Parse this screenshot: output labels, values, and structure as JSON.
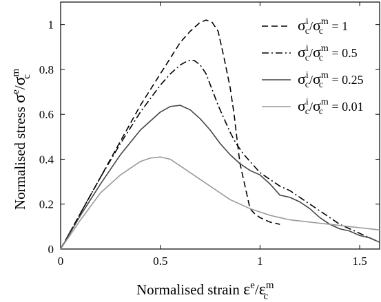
{
  "chart_data": {
    "type": "line",
    "title": "",
    "xlabel": {
      "text": "Normalised strain",
      "symbol": {
        "main": "ε",
        "sup1": "e",
        "sep": "/",
        "main2": "ε",
        "sub2": "c",
        "sup2": "m"
      }
    },
    "ylabel": {
      "text": "Normalised stress",
      "symbol": {
        "main": "σ",
        "sup1": "e",
        "sep": "/",
        "main2": "σ",
        "sub2": "c",
        "sup2": "m"
      }
    },
    "xlim": [
      0,
      1.6
    ],
    "ylim": [
      0,
      1.1
    ],
    "xticks": [
      0,
      0.5,
      1,
      1.5
    ],
    "xtick_labels": [
      "0",
      "0.5",
      "1",
      "1.5"
    ],
    "yticks": [
      0,
      0.2,
      0.4,
      0.6,
      0.8,
      1
    ],
    "ytick_labels": [
      "0",
      "0.2",
      "0.4",
      "0.6",
      "0.8",
      "1"
    ],
    "grid": false,
    "legend_position": "top-right",
    "series": [
      {
        "name": "σci/σcm = 1",
        "legend": {
          "sym1": "σ",
          "sub1": "c",
          "sup1": "i",
          "sym2": "σ",
          "sub2": "c",
          "sup2": "m",
          "value": "= 1"
        },
        "style": "dashed",
        "color": "#000000",
        "x": [
          0,
          0.1,
          0.2,
          0.3,
          0.4,
          0.5,
          0.55,
          0.6,
          0.65,
          0.7,
          0.73,
          0.76,
          0.79,
          0.82,
          0.85,
          0.87,
          0.89,
          0.9,
          0.92,
          0.94,
          0.95,
          0.97,
          1.0,
          1.05,
          1.1
        ],
        "y": [
          0,
          0.16,
          0.32,
          0.48,
          0.64,
          0.78,
          0.85,
          0.92,
          0.97,
          1.01,
          1.02,
          1.01,
          0.97,
          0.85,
          0.72,
          0.6,
          0.45,
          0.38,
          0.3,
          0.22,
          0.18,
          0.16,
          0.14,
          0.12,
          0.11
        ]
      },
      {
        "name": "σci/σcm = 0.5",
        "legend": {
          "sym1": "σ",
          "sub1": "c",
          "sup1": "i",
          "sym2": "σ",
          "sub2": "c",
          "sup2": "m",
          "value": "= 0.5"
        },
        "style": "dashdot",
        "color": "#000000",
        "x": [
          0,
          0.1,
          0.2,
          0.3,
          0.4,
          0.5,
          0.55,
          0.6,
          0.64,
          0.67,
          0.7,
          0.73,
          0.76,
          0.79,
          0.82,
          0.85,
          0.88,
          0.92,
          0.96,
          1.0,
          1.05,
          1.1,
          1.15,
          1.2,
          1.25,
          1.3,
          1.35,
          1.4,
          1.45,
          1.5,
          1.55,
          1.6
        ],
        "y": [
          0,
          0.16,
          0.32,
          0.47,
          0.61,
          0.73,
          0.78,
          0.82,
          0.84,
          0.84,
          0.82,
          0.78,
          0.71,
          0.64,
          0.58,
          0.52,
          0.47,
          0.42,
          0.38,
          0.34,
          0.31,
          0.28,
          0.26,
          0.23,
          0.2,
          0.17,
          0.14,
          0.11,
          0.09,
          0.07,
          0.05,
          0.03
        ]
      },
      {
        "name": "σci/σcm = 0.25",
        "legend": {
          "sym1": "σ",
          "sub1": "c",
          "sup1": "i",
          "sym2": "σ",
          "sub2": "c",
          "sup2": "m",
          "value": "= 0.25"
        },
        "style": "solid",
        "color": "#444444",
        "x": [
          0,
          0.1,
          0.2,
          0.3,
          0.4,
          0.5,
          0.55,
          0.6,
          0.65,
          0.7,
          0.75,
          0.8,
          0.85,
          0.9,
          0.95,
          1.0,
          1.05,
          1.1,
          1.15,
          1.2,
          1.25,
          1.3,
          1.35,
          1.4,
          1.45,
          1.5,
          1.55,
          1.6
        ],
        "y": [
          0,
          0.15,
          0.29,
          0.42,
          0.53,
          0.61,
          0.635,
          0.64,
          0.62,
          0.58,
          0.53,
          0.47,
          0.42,
          0.38,
          0.35,
          0.33,
          0.29,
          0.24,
          0.23,
          0.21,
          0.18,
          0.14,
          0.11,
          0.09,
          0.08,
          0.06,
          0.05,
          0.03
        ]
      },
      {
        "name": "σci/σcm = 0.01",
        "legend": {
          "sym1": "σ",
          "sub1": "c",
          "sup1": "i",
          "sym2": "σ",
          "sub2": "c",
          "sup2": "m",
          "value": "= 0.01"
        },
        "style": "solid",
        "color": "#999999",
        "x": [
          0,
          0.1,
          0.2,
          0.3,
          0.4,
          0.45,
          0.5,
          0.55,
          0.6,
          0.7,
          0.8,
          0.85,
          0.9,
          0.95,
          1.0,
          1.05,
          1.1,
          1.15,
          1.2,
          1.25,
          1.3,
          1.35,
          1.4,
          1.45,
          1.5,
          1.55,
          1.6
        ],
        "y": [
          0,
          0.13,
          0.25,
          0.33,
          0.39,
          0.405,
          0.41,
          0.4,
          0.37,
          0.31,
          0.25,
          0.22,
          0.2,
          0.18,
          0.165,
          0.15,
          0.14,
          0.13,
          0.125,
          0.12,
          0.115,
          0.11,
          0.105,
          0.1,
          0.095,
          0.09,
          0.085
        ]
      }
    ]
  }
}
